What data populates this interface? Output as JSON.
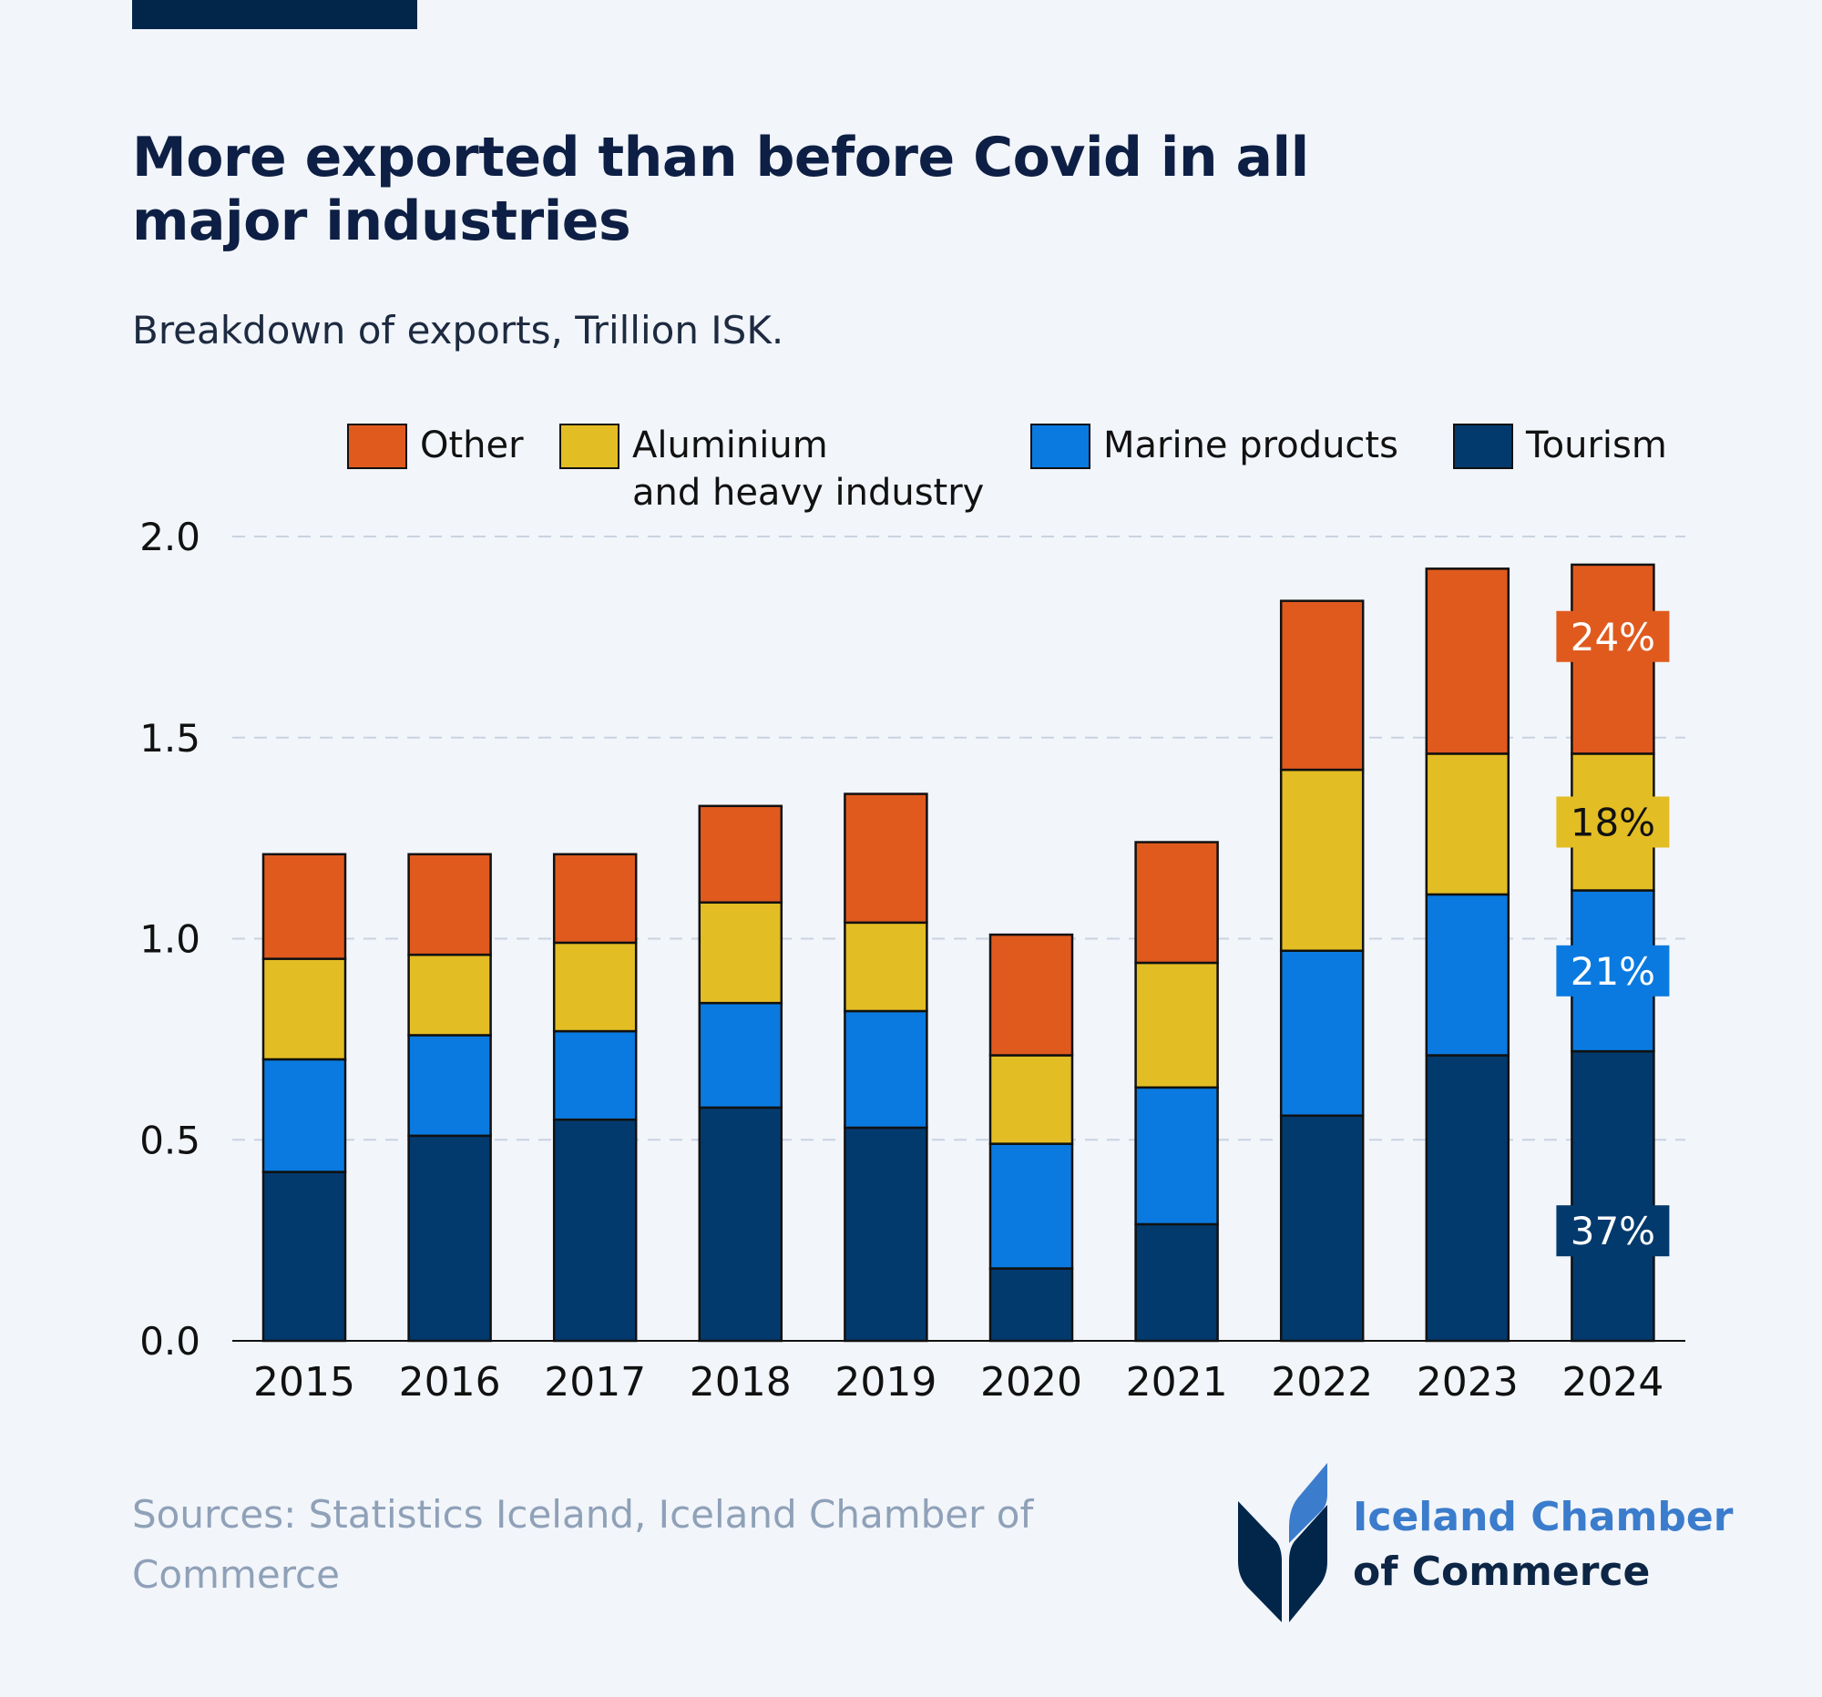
{
  "header": {
    "title": "More exported than before Covid in all major industries",
    "subtitle": "Breakdown of exports, Trillion ISK."
  },
  "legend": [
    {
      "label": "Other",
      "color": "#e05a1e"
    },
    {
      "label": "Aluminium\nand heavy industry",
      "color": "#e3bd24"
    },
    {
      "label": "Marine products",
      "color": "#0a7ae0"
    },
    {
      "label": "Tourism",
      "color": "#033a6e"
    }
  ],
  "chart_data": {
    "type": "bar",
    "stacked": true,
    "title": "More exported than before Covid in all major industries",
    "subtitle": "Breakdown of exports, Trillion ISK.",
    "xlabel": "",
    "ylabel": "Trillion ISK",
    "ylim": [
      0,
      2.0
    ],
    "yticks": [
      "0.0",
      "0.5",
      "1.0",
      "1.5",
      "2.0"
    ],
    "grid": true,
    "legend_position": "top",
    "categories": [
      "2015",
      "2016",
      "2017",
      "2018",
      "2019",
      "2020",
      "2021",
      "2022",
      "2023",
      "2024"
    ],
    "series": [
      {
        "name": "Tourism",
        "color": "#033a6e",
        "values": [
          0.42,
          0.51,
          0.55,
          0.58,
          0.53,
          0.18,
          0.29,
          0.56,
          0.71,
          0.72
        ]
      },
      {
        "name": "Marine products",
        "color": "#0a7ae0",
        "values": [
          0.28,
          0.25,
          0.22,
          0.26,
          0.29,
          0.31,
          0.34,
          0.41,
          0.4,
          0.4
        ]
      },
      {
        "name": "Aluminium and heavy industry",
        "color": "#e3bd24",
        "values": [
          0.25,
          0.2,
          0.22,
          0.25,
          0.22,
          0.22,
          0.31,
          0.45,
          0.35,
          0.34
        ]
      },
      {
        "name": "Other",
        "color": "#e05a1e",
        "values": [
          0.26,
          0.25,
          0.22,
          0.24,
          0.32,
          0.3,
          0.3,
          0.42,
          0.46,
          0.47
        ]
      }
    ],
    "annotations": [
      {
        "category": "2024",
        "series": "Other",
        "text": "24%",
        "text_color": "#ffffff"
      },
      {
        "category": "2024",
        "series": "Aluminium and heavy industry",
        "text": "18%",
        "text_color": "#111111"
      },
      {
        "category": "2024",
        "series": "Marine products",
        "text": "21%",
        "text_color": "#ffffff"
      },
      {
        "category": "2024",
        "series": "Tourism",
        "text": "37%",
        "text_color": "#ffffff"
      }
    ]
  },
  "footer": {
    "sources": "Sources: Statistics Iceland, Iceland Chamber of Commerce"
  },
  "logo": {
    "line1": "Iceland Chamber",
    "line2": "of Commerce"
  }
}
